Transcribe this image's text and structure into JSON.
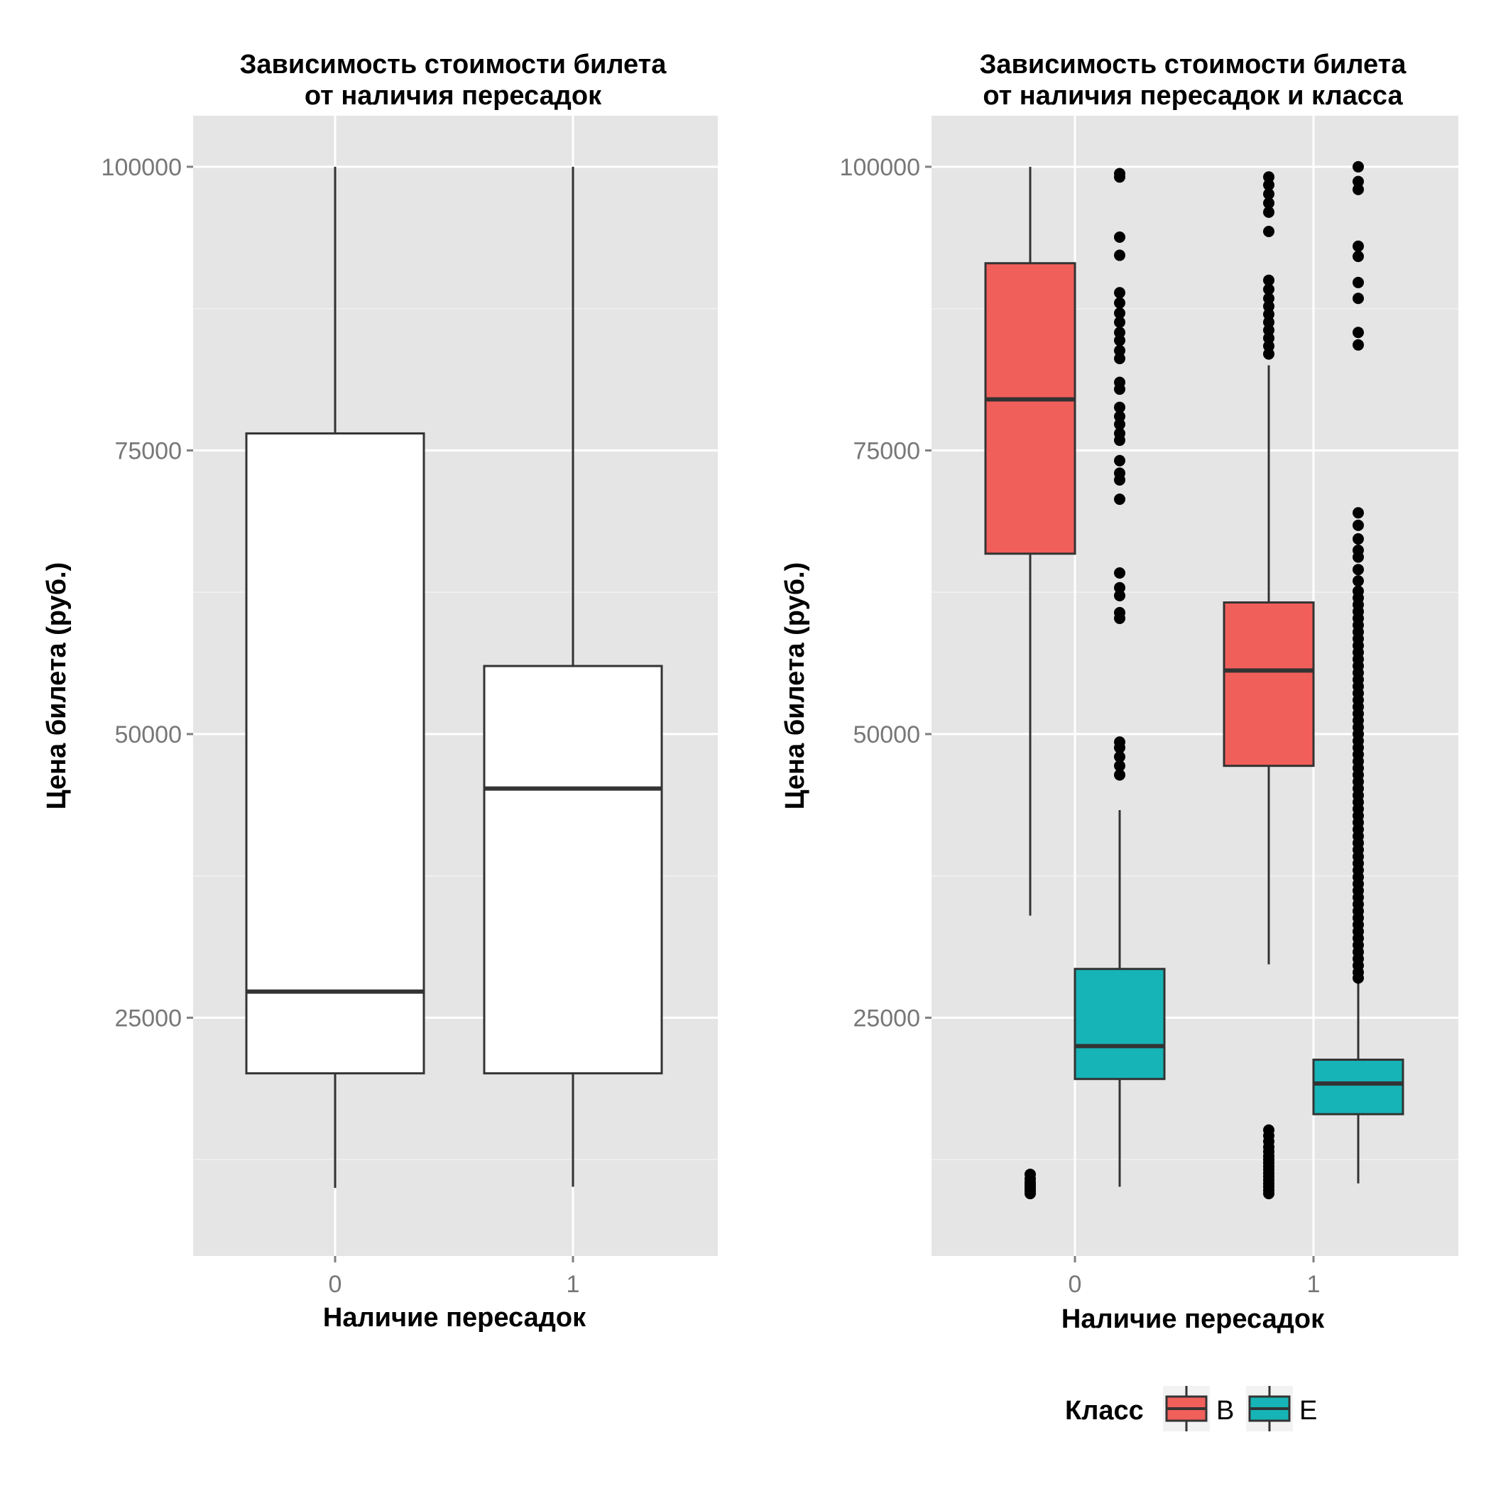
{
  "chart_data": [
    {
      "type": "boxplot",
      "title_lines": [
        "Зависимость стоимости билета",
        "от наличия пересадок"
      ],
      "xlabel": "Наличие пересадок",
      "ylabel": "Цена билета (руб.)",
      "categories": [
        "0",
        "1"
      ],
      "y_ticks": [
        "25000",
        "50000",
        "75000",
        "100000"
      ],
      "ylim": [
        4000,
        104500
      ],
      "grid": true,
      "boxes": [
        {
          "category": "0",
          "whisker_low": 10000,
          "q1": 20100,
          "median": 27300,
          "q3": 76500,
          "whisker_high": 100000,
          "fill": "#ffffff"
        },
        {
          "category": "1",
          "whisker_low": 10100,
          "q1": 20100,
          "median": 45200,
          "q3": 56000,
          "whisker_high": 100000,
          "fill": "#ffffff"
        }
      ]
    },
    {
      "type": "boxplot",
      "title_lines": [
        "Зависимость стоимости билета",
        "от наличия пересадок и класса"
      ],
      "xlabel": "Наличие пересадок",
      "ylabel": "Цена билета (руб.)",
      "categories": [
        "0",
        "1"
      ],
      "y_ticks": [
        "25000",
        "50000",
        "75000",
        "100000"
      ],
      "ylim": [
        4000,
        104500
      ],
      "grid": true,
      "legend": {
        "title": "Класс",
        "position": "bottom",
        "entries": [
          {
            "label": "B",
            "color": "#F15F5A"
          },
          {
            "label": "E",
            "color": "#16B4B6"
          }
        ]
      },
      "series": [
        {
          "name": "B",
          "color": "#F15F5A",
          "boxes": [
            {
              "category": "0",
              "whisker_low": 34000,
              "q1": 65900,
              "median": 79500,
              "q3": 91500,
              "whisker_high": 100000,
              "outliers": [
                9500,
                9700,
                9900,
                10100,
                10300,
                10500,
                10800,
                11200
              ]
            },
            {
              "category": "1",
              "whisker_low": 29700,
              "q1": 47200,
              "median": 55600,
              "q3": 61600,
              "whisker_high": 82500,
              "outliers": [
                9500,
                9800,
                10100,
                10400,
                10700,
                11000,
                11300,
                11600,
                11900,
                12200,
                12500,
                12800,
                13200,
                13600,
                14100,
                14600,
                15100,
                83500,
                84200,
                84900,
                85600,
                86300,
                87000,
                87700,
                88400,
                89200,
                90000,
                94300,
                96000,
                96800,
                97600,
                98400,
                99100
              ]
            }
          ]
        },
        {
          "name": "E",
          "color": "#16B4B6",
          "boxes": [
            {
              "category": "0",
              "whisker_low": 10100,
              "q1": 19600,
              "median": 22500,
              "q3": 29300,
              "whisker_high": 43300,
              "outliers": [
                46400,
                47200,
                48000,
                48800,
                49300,
                60200,
                60700,
                62200,
                62900,
                64200,
                70700,
                72400,
                73000,
                74100,
                75900,
                76500,
                77300,
                78000,
                78800,
                80400,
                81000,
                83100,
                83800,
                84700,
                85400,
                86300,
                87100,
                88000,
                88900,
                92200,
                93800,
                99100,
                99400
              ]
            },
            {
              "category": "1",
              "whisker_low": 10400,
              "q1": 16500,
              "median": 19200,
              "q3": 21300,
              "whisker_high": 28200,
              "outliers": [
                28500,
                29000,
                29600,
                30200,
                30800,
                31400,
                32000,
                32600,
                33200,
                33800,
                34400,
                35000,
                35600,
                36200,
                36800,
                37400,
                38000,
                38600,
                39200,
                39800,
                40400,
                41000,
                41600,
                42200,
                42800,
                43400,
                44000,
                44600,
                45200,
                45800,
                46400,
                47000,
                47600,
                48200,
                48800,
                49400,
                50000,
                50600,
                51200,
                51800,
                52400,
                53000,
                53600,
                54200,
                54800,
                55400,
                56000,
                56600,
                57200,
                57800,
                58400,
                59000,
                59600,
                60200,
                60800,
                61400,
                62000,
                62600,
                63500,
                64500,
                65600,
                66200,
                67200,
                68400,
                69500,
                84300,
                85400,
                88400,
                89800,
                92100,
                93000,
                98000,
                98700,
                100000
              ]
            }
          ]
        }
      ]
    }
  ]
}
